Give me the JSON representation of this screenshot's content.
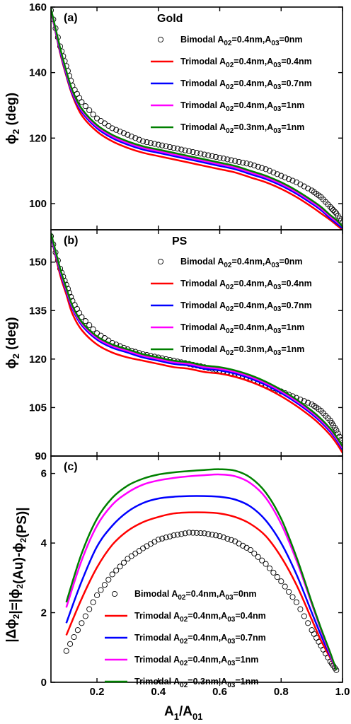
{
  "figure": {
    "xlabel_main": "A",
    "xlabel_sub1": "1",
    "xlabel_slash": "/A",
    "xlabel_sub2": "01"
  },
  "chart_data": [
    {
      "type": "line",
      "panel_label": "(a)",
      "title": "Gold",
      "ylabel": "ϕ2 (deg)",
      "xlim": [
        0.05,
        1.0
      ],
      "ylim": [
        92,
        160
      ],
      "yticks": [
        100,
        120,
        140,
        160
      ],
      "xticks": [
        0.2,
        0.4,
        0.6,
        0.8,
        1.0
      ],
      "show_x_ticklabels": false,
      "legend_position": "top-right",
      "series": [
        {
          "legend_prefix": "Bimodal A",
          "a2": "02",
          "v2": "=0.4nm,A",
          "a3": "03",
          "v3": "=0nm",
          "color": "#000000",
          "style": "circles",
          "x": [
            0.05,
            0.08,
            0.1,
            0.12,
            0.15,
            0.2,
            0.25,
            0.3,
            0.35,
            0.4,
            0.45,
            0.5,
            0.55,
            0.6,
            0.65,
            0.7,
            0.75,
            0.8,
            0.85,
            0.9,
            0.93,
            0.96,
            0.98,
            1.0
          ],
          "y": [
            159,
            148,
            142,
            136,
            131,
            126,
            123,
            121,
            119,
            118,
            117,
            116,
            115,
            114,
            113,
            112,
            110.5,
            108.5,
            106.5,
            104,
            102,
            99,
            97,
            94
          ]
        },
        {
          "legend_prefix": "Trimodal A",
          "a2": "02",
          "v2": "=0.4nm,A",
          "a3": "03",
          "v3": "=0.4nm",
          "color": "#ff0000",
          "style": "line",
          "x": [
            0.05,
            0.08,
            0.1,
            0.12,
            0.15,
            0.2,
            0.25,
            0.3,
            0.35,
            0.4,
            0.45,
            0.5,
            0.55,
            0.6,
            0.65,
            0.7,
            0.75,
            0.8,
            0.85,
            0.9,
            0.93,
            0.96,
            0.98,
            1.0
          ],
          "y": [
            159,
            146,
            139,
            133,
            127,
            122,
            119,
            117,
            115.5,
            114.5,
            113.5,
            112.5,
            111.5,
            110.5,
            109.5,
            108,
            106.5,
            104.5,
            102,
            99,
            97,
            95,
            93.5,
            92
          ]
        },
        {
          "legend_prefix": "Trimodal A",
          "a2": "02",
          "v2": "=0.4nm,A",
          "a3": "03",
          "v3": "=0.7nm",
          "color": "#0000ff",
          "style": "line",
          "x": [
            0.05,
            0.08,
            0.1,
            0.12,
            0.15,
            0.2,
            0.25,
            0.3,
            0.35,
            0.4,
            0.45,
            0.5,
            0.55,
            0.6,
            0.65,
            0.7,
            0.75,
            0.8,
            0.85,
            0.9,
            0.93,
            0.96,
            0.98,
            1.0
          ],
          "y": [
            159,
            146.5,
            139.5,
            133.5,
            128,
            123,
            120,
            118,
            116.5,
            115.5,
            114.5,
            113.5,
            112.5,
            111.5,
            110.5,
            109,
            107.5,
            105.5,
            103,
            100,
            98,
            95.5,
            94,
            92.5
          ]
        },
        {
          "legend_prefix": "Trimodal A",
          "a2": "02",
          "v2": "=0.4nm,A",
          "a3": "03",
          "v3": "=1nm",
          "color": "#ff00ff",
          "style": "line",
          "x": [
            0.05,
            0.08,
            0.1,
            0.12,
            0.15,
            0.2,
            0.25,
            0.3,
            0.35,
            0.4,
            0.45,
            0.5,
            0.55,
            0.6,
            0.65,
            0.7,
            0.75,
            0.8,
            0.85,
            0.9,
            0.93,
            0.96,
            0.98,
            1.0
          ],
          "y": [
            159,
            147,
            140,
            134,
            128.5,
            123.5,
            120.5,
            118.5,
            117,
            116,
            115,
            114,
            113,
            112,
            111,
            109.5,
            108,
            106,
            103.5,
            100.5,
            98.5,
            96,
            94.5,
            93
          ]
        },
        {
          "legend_prefix": "Trimodal A",
          "a2": "02",
          "v2": "=0.3nm,A",
          "a3": "03",
          "v3": "=1nm",
          "color": "#008000",
          "style": "line",
          "x": [
            0.05,
            0.08,
            0.1,
            0.12,
            0.15,
            0.2,
            0.25,
            0.3,
            0.35,
            0.4,
            0.45,
            0.5,
            0.55,
            0.6,
            0.65,
            0.7,
            0.75,
            0.8,
            0.85,
            0.9,
            0.93,
            0.96,
            0.98,
            1.0
          ],
          "y": [
            159.5,
            147.5,
            140.5,
            134.5,
            129,
            124,
            121,
            119,
            117.5,
            116.5,
            115.5,
            114.5,
            113.5,
            112.5,
            111.5,
            110,
            108.5,
            106.5,
            104,
            101,
            99,
            96.5,
            95,
            93
          ]
        }
      ]
    },
    {
      "type": "line",
      "panel_label": "(b)",
      "title": "PS",
      "ylabel": "ϕ2 (deg)",
      "xlim": [
        0.05,
        1.0
      ],
      "ylim": [
        90,
        160
      ],
      "yticks": [
        90,
        105,
        120,
        135,
        150
      ],
      "xticks": [
        0.2,
        0.4,
        0.6,
        0.8,
        1.0
      ],
      "show_x_ticklabels": false,
      "legend_position": "top-right",
      "series": [
        {
          "legend_prefix": "Bimodal A",
          "a2": "02",
          "v2": "=0.4nm,A",
          "a3": "03",
          "v3": "=0nm",
          "color": "#000000",
          "style": "circles",
          "x": [
            0.05,
            0.08,
            0.1,
            0.12,
            0.15,
            0.2,
            0.25,
            0.3,
            0.35,
            0.4,
            0.45,
            0.5,
            0.55,
            0.6,
            0.65,
            0.7,
            0.75,
            0.8,
            0.85,
            0.9,
            0.93,
            0.96,
            0.98,
            1.0
          ],
          "y": [
            158,
            148,
            143,
            138,
            133,
            128,
            125,
            123,
            121.5,
            120.5,
            119.5,
            118.5,
            117.5,
            116.5,
            115.5,
            114,
            112,
            110,
            108,
            106,
            104,
            101,
            98,
            94
          ]
        },
        {
          "legend_prefix": "Trimodal A",
          "a2": "02",
          "v2": "=0.4nm,A",
          "a3": "03",
          "v3": "=0.4nm",
          "color": "#ff0000",
          "style": "line",
          "x": [
            0.05,
            0.08,
            0.1,
            0.12,
            0.15,
            0.2,
            0.25,
            0.3,
            0.35,
            0.4,
            0.45,
            0.5,
            0.55,
            0.6,
            0.65,
            0.7,
            0.75,
            0.8,
            0.85,
            0.9,
            0.93,
            0.96,
            0.98,
            1.0
          ],
          "y": [
            158,
            146,
            140,
            134,
            129,
            124.5,
            122,
            120.5,
            119.5,
            118.5,
            117.5,
            117,
            116,
            115.5,
            114.5,
            113,
            111,
            108.5,
            105.5,
            102,
            99.5,
            96.5,
            94,
            91
          ]
        },
        {
          "legend_prefix": "Trimodal A",
          "a2": "02",
          "v2": "=0.4nm,A",
          "a3": "03",
          "v3": "=0.7nm",
          "color": "#0000ff",
          "style": "line",
          "x": [
            0.05,
            0.08,
            0.1,
            0.12,
            0.15,
            0.2,
            0.25,
            0.3,
            0.35,
            0.4,
            0.45,
            0.5,
            0.55,
            0.6,
            0.65,
            0.7,
            0.75,
            0.8,
            0.85,
            0.9,
            0.93,
            0.96,
            0.98,
            1.0
          ],
          "y": [
            158,
            147,
            141,
            135.5,
            130.5,
            126,
            123.5,
            122,
            120.5,
            119.5,
            118.5,
            118,
            117,
            116.5,
            115.5,
            114,
            112,
            109.5,
            106.5,
            103,
            100.5,
            97.5,
            95,
            92
          ]
        },
        {
          "legend_prefix": "Trimodal A",
          "a2": "02",
          "v2": "=0.4nm,A",
          "a3": "03",
          "v3": "=1nm",
          "color": "#ff00ff",
          "style": "line",
          "x": [
            0.05,
            0.08,
            0.1,
            0.12,
            0.15,
            0.2,
            0.25,
            0.3,
            0.35,
            0.4,
            0.45,
            0.5,
            0.55,
            0.6,
            0.65,
            0.7,
            0.75,
            0.8,
            0.85,
            0.9,
            0.93,
            0.96,
            0.98,
            1.0
          ],
          "y": [
            158.5,
            147.5,
            141.5,
            136,
            131,
            126.5,
            124,
            122.5,
            121,
            120,
            119,
            118.5,
            117.5,
            117,
            116,
            114.5,
            112.5,
            110,
            107,
            103.5,
            101,
            98,
            95.5,
            92.5
          ]
        },
        {
          "legend_prefix": "Trimodal A",
          "a2": "02",
          "v2": "=0.3nm,A",
          "a3": "03",
          "v3": "=1nm",
          "color": "#008000",
          "style": "line",
          "x": [
            0.05,
            0.08,
            0.1,
            0.12,
            0.15,
            0.2,
            0.25,
            0.3,
            0.35,
            0.4,
            0.45,
            0.5,
            0.55,
            0.6,
            0.65,
            0.7,
            0.75,
            0.8,
            0.85,
            0.9,
            0.93,
            0.96,
            0.98,
            1.0
          ],
          "y": [
            159,
            148,
            142,
            136.5,
            131.5,
            127,
            124.5,
            123,
            121.5,
            120.5,
            119.5,
            119,
            118,
            117.5,
            116.5,
            115,
            113,
            110.5,
            107.5,
            104,
            101.5,
            98.5,
            96,
            93
          ]
        }
      ]
    },
    {
      "type": "line",
      "panel_label": "(c)",
      "title": "",
      "ylabel": "|Δϕ2|=|ϕ2(Au)-ϕ2(PS)|",
      "xlabel": "A1/A01",
      "xlim": [
        0.05,
        1.0
      ],
      "ylim": [
        0,
        6.5
      ],
      "yticks": [
        0,
        2,
        4,
        6
      ],
      "xticks": [
        0.2,
        0.4,
        0.6,
        0.8,
        1.0
      ],
      "show_x_ticklabels": true,
      "legend_position": "bottom-center",
      "series": [
        {
          "legend_prefix": "Bimodal A",
          "a2": "02",
          "v2": "=0.4nm,A",
          "a3": "03",
          "v3": "=0nm",
          "color": "#000000",
          "style": "circles",
          "x": [
            0.1,
            0.15,
            0.2,
            0.25,
            0.3,
            0.35,
            0.4,
            0.45,
            0.5,
            0.55,
            0.6,
            0.65,
            0.7,
            0.75,
            0.8,
            0.85,
            0.9,
            0.93,
            0.96,
            0.98
          ],
          "y": [
            0.9,
            1.7,
            2.5,
            3.1,
            3.55,
            3.85,
            4.1,
            4.22,
            4.3,
            4.28,
            4.2,
            4.05,
            3.8,
            3.4,
            2.9,
            2.3,
            1.5,
            1.05,
            0.6,
            0.35
          ]
        },
        {
          "legend_prefix": "Trimodal A",
          "a2": "02",
          "v2": "=0.4nm,A",
          "a3": "03",
          "v3": "=0.4nm",
          "color": "#ff0000",
          "style": "line",
          "x": [
            0.1,
            0.15,
            0.2,
            0.25,
            0.3,
            0.35,
            0.4,
            0.45,
            0.5,
            0.55,
            0.6,
            0.65,
            0.7,
            0.75,
            0.8,
            0.85,
            0.9,
            0.93,
            0.96,
            0.98
          ],
          "y": [
            1.35,
            2.4,
            3.3,
            3.95,
            4.35,
            4.6,
            4.75,
            4.85,
            4.88,
            4.88,
            4.85,
            4.75,
            4.55,
            4.2,
            3.6,
            2.8,
            1.8,
            1.2,
            0.7,
            0.35
          ]
        },
        {
          "legend_prefix": "Trimodal A",
          "a2": "02",
          "v2": "=0.4nm,A",
          "a3": "03",
          "v3": "=0.7nm",
          "color": "#0000ff",
          "style": "line",
          "x": [
            0.1,
            0.15,
            0.2,
            0.25,
            0.3,
            0.35,
            0.4,
            0.45,
            0.5,
            0.55,
            0.6,
            0.65,
            0.7,
            0.75,
            0.8,
            0.85,
            0.9,
            0.93,
            0.96,
            0.98
          ],
          "y": [
            1.7,
            2.9,
            3.9,
            4.5,
            4.9,
            5.15,
            5.28,
            5.33,
            5.35,
            5.35,
            5.33,
            5.25,
            5.05,
            4.65,
            4.0,
            3.1,
            2.0,
            1.35,
            0.75,
            0.35
          ]
        },
        {
          "legend_prefix": "Trimodal A",
          "a2": "02",
          "v2": "=0.4nm,A",
          "a3": "03",
          "v3": "=1nm",
          "color": "#ff00ff",
          "style": "line",
          "x": [
            0.1,
            0.15,
            0.2,
            0.25,
            0.3,
            0.35,
            0.4,
            0.45,
            0.5,
            0.55,
            0.6,
            0.65,
            0.7,
            0.75,
            0.8,
            0.85,
            0.9,
            0.93,
            0.96,
            0.98
          ],
          "y": [
            2.15,
            3.5,
            4.5,
            5.1,
            5.45,
            5.68,
            5.8,
            5.87,
            5.92,
            5.95,
            5.97,
            5.92,
            5.72,
            5.3,
            4.55,
            3.5,
            2.25,
            1.5,
            0.8,
            0.35
          ]
        },
        {
          "legend_prefix": "Trimodal A",
          "a2": "02",
          "v2": "=0.3nm,A",
          "a3": "03",
          "v3": "=1nm",
          "color": "#008000",
          "style": "line",
          "x": [
            0.1,
            0.15,
            0.2,
            0.25,
            0.3,
            0.35,
            0.4,
            0.45,
            0.5,
            0.55,
            0.6,
            0.65,
            0.7,
            0.75,
            0.8,
            0.85,
            0.9,
            0.93,
            0.96,
            0.98
          ],
          "y": [
            2.3,
            3.7,
            4.7,
            5.3,
            5.65,
            5.85,
            5.97,
            6.03,
            6.07,
            6.1,
            6.12,
            6.08,
            5.88,
            5.45,
            4.7,
            3.6,
            2.3,
            1.55,
            0.85,
            0.35
          ]
        }
      ]
    }
  ]
}
